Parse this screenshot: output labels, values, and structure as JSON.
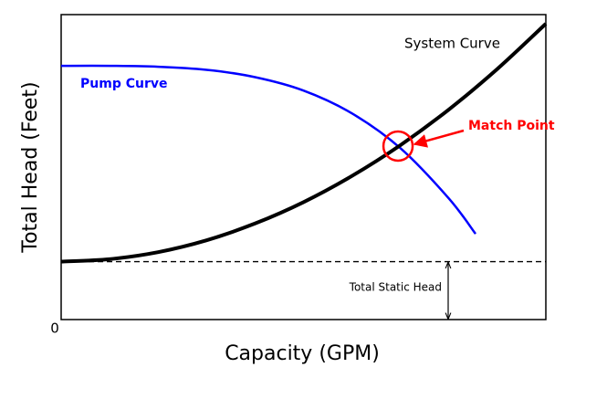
{
  "chart_data": {
    "type": "line",
    "x_label": "Capacity (GPM)",
    "y_label": "Total  Head (Feet)",
    "xlim": [
      0,
      100
    ],
    "ylim": [
      0,
      100
    ],
    "xticks": [
      0
    ],
    "series": [
      {
        "name": "Pump Curve",
        "color": "#0000ff",
        "x": [
          0,
          10,
          20,
          30,
          40,
          50,
          60,
          70,
          80,
          85.5
        ],
        "values": [
          83.2,
          83.2,
          82.9,
          81.9,
          79.5,
          75.1,
          67.6,
          56.2,
          39.7,
          28.1
        ]
      },
      {
        "name": "System Curve",
        "color": "#000000",
        "x": [
          0,
          10,
          20,
          30,
          40,
          50,
          60,
          70,
          80,
          90,
          100
        ],
        "values": [
          19,
          19.8,
          22.1,
          26.0,
          31.5,
          38.5,
          47.1,
          57.2,
          68.9,
          82.2,
          97.0
        ]
      }
    ],
    "match_point": {
      "label": "Match Point",
      "x": 69.5,
      "y": 56.9,
      "color": "#ff0000"
    },
    "static_head": {
      "label": "Total Static Head",
      "value": 19
    }
  }
}
